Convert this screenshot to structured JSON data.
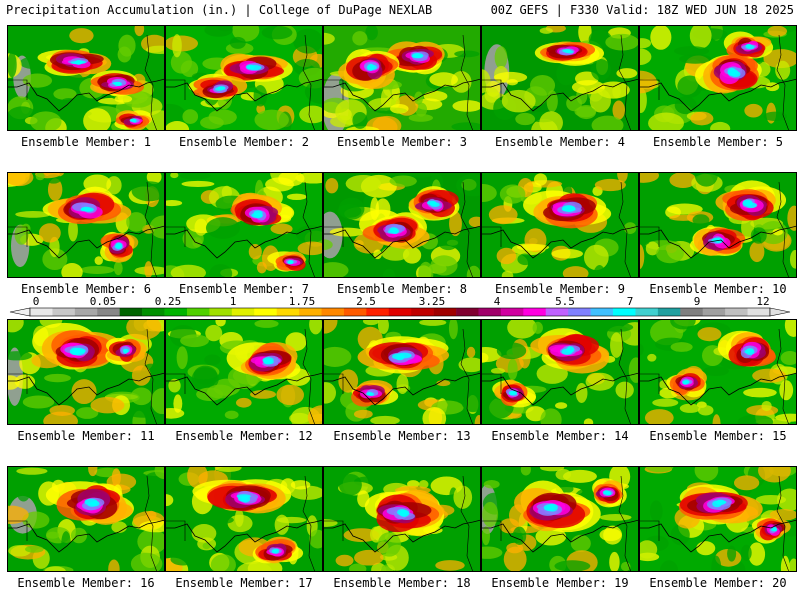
{
  "header": {
    "left": "Precipitation Accumulation (in.) | College of DuPage NEXLAB",
    "right": "00Z GEFS | F330 Valid: 18Z WED JUN 18 2025"
  },
  "members": [
    {
      "label": "Ensemble Member: 1",
      "seed": 11,
      "hot": [
        [
          0.45,
          0.35,
          0.38,
          0.22
        ],
        [
          0.7,
          0.55,
          0.3,
          0.2
        ],
        [
          0.8,
          0.9,
          0.2,
          0.15
        ]
      ],
      "base": "#00a000"
    },
    {
      "label": "Ensemble Member: 2",
      "seed": 23,
      "hot": [
        [
          0.55,
          0.4,
          0.4,
          0.25
        ],
        [
          0.35,
          0.6,
          0.3,
          0.2
        ]
      ],
      "base": "#00b000"
    },
    {
      "label": "Ensemble Member: 3",
      "seed": 37,
      "hot": [
        [
          0.6,
          0.3,
          0.35,
          0.25
        ],
        [
          0.3,
          0.4,
          0.3,
          0.3
        ]
      ],
      "base": "#22aa00"
    },
    {
      "label": "Ensemble Member: 4",
      "seed": 41,
      "hot": [
        [
          0.55,
          0.25,
          0.3,
          0.2
        ]
      ],
      "base": "#009900"
    },
    {
      "label": "Ensemble Member: 5",
      "seed": 53,
      "hot": [
        [
          0.6,
          0.45,
          0.35,
          0.35
        ],
        [
          0.7,
          0.2,
          0.25,
          0.2
        ]
      ],
      "base": "#00aa00"
    },
    {
      "label": "Ensemble Member: 6",
      "seed": 67,
      "hot": [
        [
          0.5,
          0.35,
          0.4,
          0.3
        ],
        [
          0.7,
          0.7,
          0.2,
          0.25
        ]
      ],
      "base": "#00a000"
    },
    {
      "label": "Ensemble Member: 7",
      "seed": 71,
      "hot": [
        [
          0.6,
          0.4,
          0.35,
          0.3
        ],
        [
          0.8,
          0.85,
          0.2,
          0.15
        ]
      ],
      "base": "#00aa00"
    },
    {
      "label": "Ensemble Member: 8",
      "seed": 83,
      "hot": [
        [
          0.7,
          0.3,
          0.3,
          0.25
        ],
        [
          0.45,
          0.55,
          0.35,
          0.3
        ]
      ],
      "base": "#009900"
    },
    {
      "label": "Ensemble Member: 9",
      "seed": 97,
      "hot": [
        [
          0.55,
          0.35,
          0.4,
          0.3
        ]
      ],
      "base": "#00a000"
    },
    {
      "label": "Ensemble Member: 10",
      "seed": 103,
      "hot": [
        [
          0.7,
          0.3,
          0.35,
          0.3
        ],
        [
          0.5,
          0.65,
          0.3,
          0.25
        ]
      ],
      "base": "#00a000"
    },
    {
      "label": "Ensemble Member: 11",
      "seed": 113,
      "hot": [
        [
          0.45,
          0.3,
          0.4,
          0.35
        ],
        [
          0.75,
          0.3,
          0.2,
          0.2
        ]
      ],
      "base": "#00a000"
    },
    {
      "label": "Ensemble Member: 12",
      "seed": 127,
      "hot": [
        [
          0.65,
          0.4,
          0.35,
          0.3
        ]
      ],
      "base": "#00aa00"
    },
    {
      "label": "Ensemble Member: 13",
      "seed": 131,
      "hot": [
        [
          0.5,
          0.35,
          0.45,
          0.3
        ],
        [
          0.3,
          0.7,
          0.25,
          0.2
        ]
      ],
      "base": "#00a000"
    },
    {
      "label": "Ensemble Member: 14",
      "seed": 149,
      "hot": [
        [
          0.55,
          0.3,
          0.4,
          0.3
        ],
        [
          0.2,
          0.7,
          0.2,
          0.2
        ]
      ],
      "base": "#00a000"
    },
    {
      "label": "Ensemble Member: 15",
      "seed": 151,
      "hot": [
        [
          0.7,
          0.3,
          0.3,
          0.3
        ],
        [
          0.3,
          0.6,
          0.2,
          0.2
        ]
      ],
      "base": "#00aa00"
    },
    {
      "label": "Ensemble Member: 16",
      "seed": 163,
      "hot": [
        [
          0.55,
          0.35,
          0.4,
          0.35
        ]
      ],
      "base": "#00a000"
    },
    {
      "label": "Ensemble Member: 17",
      "seed": 173,
      "hot": [
        [
          0.5,
          0.3,
          0.45,
          0.3
        ],
        [
          0.7,
          0.8,
          0.25,
          0.2
        ]
      ],
      "base": "#00a000"
    },
    {
      "label": "Ensemble Member: 18",
      "seed": 181,
      "hot": [
        [
          0.5,
          0.45,
          0.45,
          0.35
        ]
      ],
      "base": "#00a000"
    },
    {
      "label": "Ensemble Member: 19",
      "seed": 193,
      "hot": [
        [
          0.45,
          0.4,
          0.45,
          0.35
        ],
        [
          0.8,
          0.25,
          0.2,
          0.2
        ]
      ],
      "base": "#00a000"
    },
    {
      "label": "Ensemble Member: 20",
      "seed": 199,
      "hot": [
        [
          0.5,
          0.35,
          0.45,
          0.3
        ],
        [
          0.85,
          0.6,
          0.2,
          0.2
        ]
      ],
      "base": "#00aa00"
    }
  ],
  "colorbar": {
    "ticks": [
      "0",
      "0.05",
      "0.25",
      "1",
      "1.75",
      "2.5",
      "3.25",
      "4",
      "5.5",
      "7",
      "9",
      "12"
    ],
    "colors": [
      "#e8e8e8",
      "#c8c8c8",
      "#a8a8a8",
      "#888888",
      "#006400",
      "#009000",
      "#00b400",
      "#50d000",
      "#a0e000",
      "#e0f000",
      "#ffff00",
      "#ffd800",
      "#ffb000",
      "#ff8800",
      "#ff5a00",
      "#ff2000",
      "#e00000",
      "#c00000",
      "#a00000",
      "#800030",
      "#a0006a",
      "#d000a0",
      "#ff00e0",
      "#c060ff",
      "#8080ff",
      "#40c0ff",
      "#00ffff",
      "#40d0d0",
      "#20a0a0",
      "#808080",
      "#a0a0a0",
      "#c0c0c0",
      "#e0e0e0"
    ]
  }
}
